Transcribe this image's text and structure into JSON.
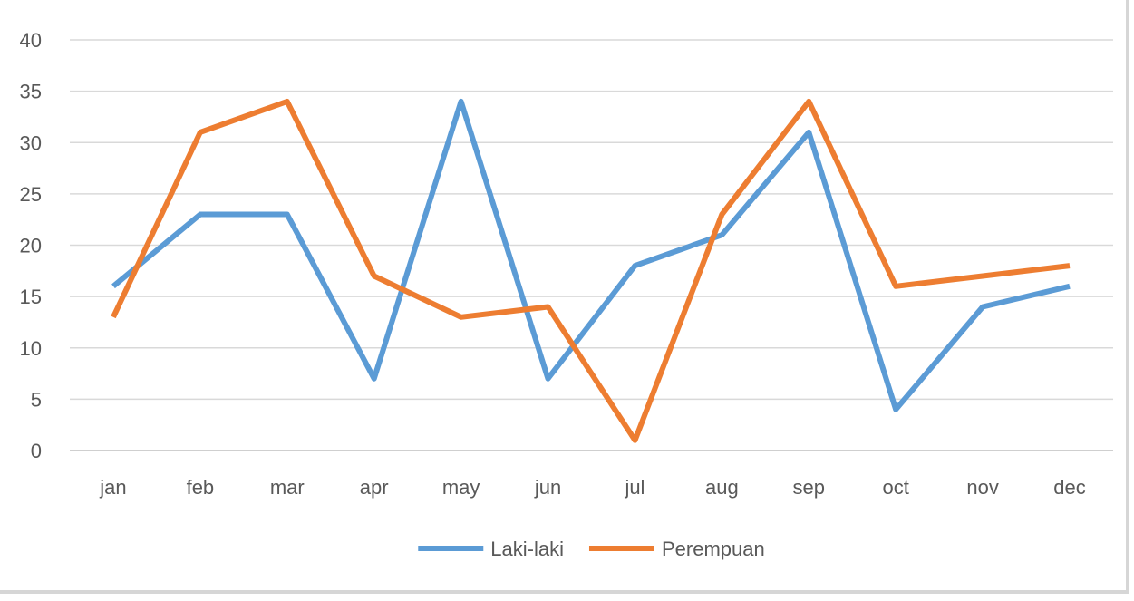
{
  "chart_data": {
    "type": "line",
    "title": "",
    "xlabel": "",
    "ylabel": "",
    "categories": [
      "jan",
      "feb",
      "mar",
      "apr",
      "may",
      "jun",
      "jul",
      "aug",
      "sep",
      "oct",
      "nov",
      "dec"
    ],
    "ylim": [
      0,
      40
    ],
    "yticks": [
      "0",
      "5",
      "10",
      "15",
      "20",
      "25",
      "30",
      "35",
      "40"
    ],
    "grid": true,
    "legend_position": "bottom",
    "series": [
      {
        "name": "Laki-laki",
        "color": "#5b9bd5",
        "values": [
          16,
          23,
          23,
          7,
          34,
          7,
          18,
          21,
          31,
          4,
          14,
          16
        ]
      },
      {
        "name": "Perempuan",
        "color": "#ed7d31",
        "values": [
          13,
          31,
          34,
          17,
          13,
          14,
          1,
          23,
          34,
          16,
          17,
          18
        ]
      }
    ]
  }
}
